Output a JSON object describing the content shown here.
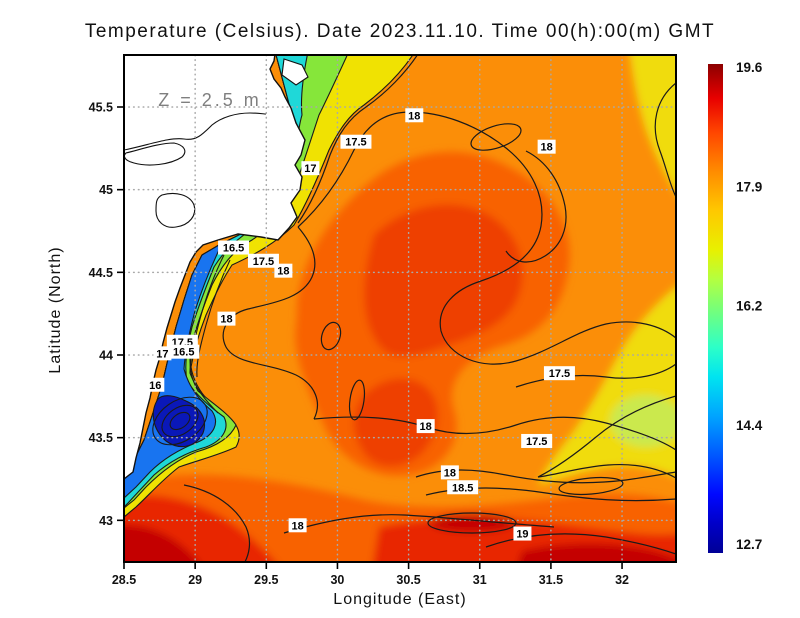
{
  "title": "Temperature (Celsius). Date 2023.11.10. Time 00(h):00(m) GMT",
  "annotation": "Z = 2.5 m",
  "axes": {
    "x": {
      "label": "Longitude (East)",
      "ticks": [
        "28.5",
        "29",
        "29.5",
        "30",
        "30.5",
        "31",
        "31.5",
        "32"
      ]
    },
    "y": {
      "label": "Latitude (North)",
      "ticks": [
        "45.5",
        "45",
        "44.5",
        "44",
        "43.5",
        "43"
      ]
    }
  },
  "colorbar": {
    "labels": [
      "19.6",
      "17.9",
      "16.2",
      "14.4",
      "12.7"
    ],
    "min": 12.7,
    "max": 19.6,
    "colormap": "jet"
  },
  "chart_data": {
    "type": "heatmap",
    "title": "Temperature (Celsius). Date 2023.11.10. Time 00(h):00(m) GMT",
    "xlabel": "Longitude (East)",
    "ylabel": "Latitude (North)",
    "depth_annotation": "Z = 2.5 m",
    "lon_range": [
      28.5,
      32.4
    ],
    "lat_range": [
      42.75,
      45.81
    ],
    "x_ticks": [
      28.5,
      29,
      29.5,
      30,
      30.5,
      31,
      31.5,
      32
    ],
    "y_ticks": [
      45.5,
      45,
      44.5,
      44,
      43.5,
      43
    ],
    "temperature_range_celsius": [
      12.7,
      19.6
    ],
    "colorbar_ticks": [
      19.6,
      17.9,
      16.2,
      14.4,
      12.7
    ],
    "grid_step_deg": 0.5,
    "contour_interval": 0.5,
    "contour_levels_labeled": [
      16,
      16.5,
      17,
      17.5,
      18,
      18.5,
      19
    ],
    "contour_labels": [
      {
        "value": "18",
        "lon": 30.54,
        "lat": 45.45
      },
      {
        "value": "17.5",
        "lon": 30.13,
        "lat": 45.29
      },
      {
        "value": "18",
        "lon": 31.47,
        "lat": 45.26
      },
      {
        "value": "17",
        "lon": 29.81,
        "lat": 45.13
      },
      {
        "value": "16.5",
        "lon": 29.27,
        "lat": 44.65
      },
      {
        "value": "17.5",
        "lon": 29.48,
        "lat": 44.57
      },
      {
        "value": "18",
        "lon": 29.62,
        "lat": 44.51
      },
      {
        "value": "18",
        "lon": 29.22,
        "lat": 44.22
      },
      {
        "value": "17.5",
        "lon": 28.91,
        "lat": 44.08
      },
      {
        "value": "17",
        "lon": 28.77,
        "lat": 44.01
      },
      {
        "value": "16.5",
        "lon": 28.92,
        "lat": 44.02
      },
      {
        "value": "16",
        "lon": 28.72,
        "lat": 43.82
      },
      {
        "value": "17.5",
        "lon": 31.56,
        "lat": 43.89
      },
      {
        "value": "18",
        "lon": 30.62,
        "lat": 43.57
      },
      {
        "value": "17.5",
        "lon": 31.4,
        "lat": 43.48
      },
      {
        "value": "18",
        "lon": 30.79,
        "lat": 43.29
      },
      {
        "value": "18.5",
        "lon": 30.88,
        "lat": 43.2
      },
      {
        "value": "18",
        "lon": 29.72,
        "lat": 42.97
      },
      {
        "value": "19",
        "lon": 31.3,
        "lat": 42.92
      }
    ],
    "features": {
      "land": "white landmass with black coastline in the north-west (Danube delta and west coast)",
      "cold_coastal_band": "blue-green cold band (13-17 C) hugging the western coast with a cold eddy core near 28.9E 43.8N",
      "warm_open_sea": "orange 17.5-18.5 C over most of the basin",
      "warmest": "red band above 18.5 C with 19 C contour along the southern edge",
      "coolest_offshore": "yellow 17-17.5 C patches along the eastern edge"
    }
  },
  "accent_colors": {
    "grid": "#A9A9A9",
    "annotation_text": "#7F7F7F",
    "contour_line": "#1A1A1A",
    "land": "#FFFFFF",
    "sea_base": "#FB8E08"
  }
}
